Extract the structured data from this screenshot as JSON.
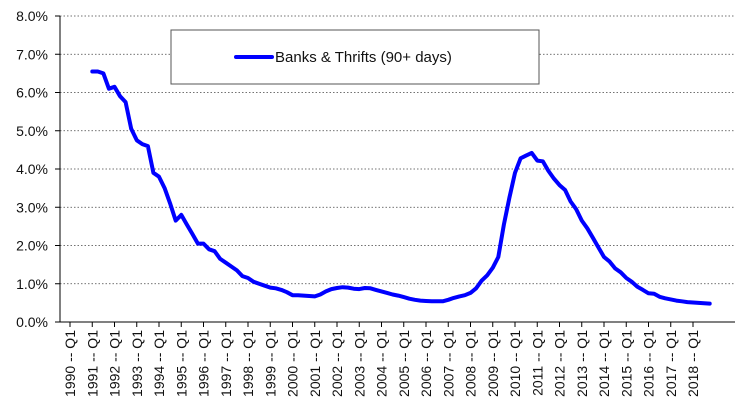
{
  "chart_data": {
    "type": "line",
    "title": "",
    "xlabel": "",
    "ylabel": "",
    "ylim": [
      0,
      8
    ],
    "yticks": [
      "0.0%",
      "1.0%",
      "2.0%",
      "3.0%",
      "4.0%",
      "5.0%",
      "6.0%",
      "7.0%",
      "8.0%"
    ],
    "x_tick_labels": [
      "1990 -- Q1",
      "1991 -- Q1",
      "1992 -- Q1",
      "1993 -- Q1",
      "1994 -- Q1",
      "1995 -- Q1",
      "1996 -- Q1",
      "1997 -- Q1",
      "1998 -- Q1",
      "1999 -- Q1",
      "2000 -- Q1",
      "2001 -- Q1",
      "2002 -- Q1",
      "2003 -- Q1",
      "2004 -- Q1",
      "2005 -- Q1",
      "2006 -- Q1",
      "2007 -- Q1",
      "2008 -- Q1",
      "2009 -- Q1",
      "2010 -- Q1",
      "2011 -- Q1",
      "2012 -- Q1",
      "2013 -- Q1",
      "2014 -- Q1",
      "2015 -- Q1",
      "2016 -- Q1",
      "2017 -- Q1",
      "2018 -- Q1"
    ],
    "grid": "horizontal dotted",
    "legend_position": "top-center",
    "series": [
      {
        "name": "Banks & Thrifts (90+ days)",
        "color": "#0000ff",
        "x": [
          "1991 Q1",
          "1991 Q2",
          "1991 Q3",
          "1991 Q4",
          "1992 Q1",
          "1992 Q2",
          "1992 Q3",
          "1992 Q4",
          "1993 Q1",
          "1993 Q2",
          "1993 Q3",
          "1993 Q4",
          "1994 Q1",
          "1994 Q2",
          "1994 Q3",
          "1994 Q4",
          "1995 Q1",
          "1995 Q2",
          "1995 Q3",
          "1995 Q4",
          "1996 Q1",
          "1996 Q2",
          "1996 Q3",
          "1996 Q4",
          "1997 Q1",
          "1997 Q2",
          "1997 Q3",
          "1997 Q4",
          "1998 Q1",
          "1998 Q2",
          "1998 Q3",
          "1998 Q4",
          "1999 Q1",
          "1999 Q2",
          "1999 Q3",
          "1999 Q4",
          "2000 Q1",
          "2000 Q2",
          "2000 Q3",
          "2000 Q4",
          "2001 Q1",
          "2001 Q2",
          "2001 Q3",
          "2001 Q4",
          "2002 Q1",
          "2002 Q2",
          "2002 Q3",
          "2002 Q4",
          "2003 Q1",
          "2003 Q2",
          "2003 Q3",
          "2003 Q4",
          "2004 Q1",
          "2004 Q2",
          "2004 Q3",
          "2004 Q4",
          "2005 Q1",
          "2005 Q2",
          "2005 Q3",
          "2005 Q4",
          "2006 Q1",
          "2006 Q2",
          "2006 Q3",
          "2006 Q4",
          "2007 Q1",
          "2007 Q2",
          "2007 Q3",
          "2007 Q4",
          "2008 Q1",
          "2008 Q2",
          "2008 Q3",
          "2008 Q4",
          "2009 Q1",
          "2009 Q2",
          "2009 Q3",
          "2009 Q4",
          "2010 Q1",
          "2010 Q2",
          "2010 Q3",
          "2010 Q4",
          "2011 Q1",
          "2011 Q2",
          "2011 Q3",
          "2011 Q4",
          "2012 Q1",
          "2012 Q2",
          "2012 Q3",
          "2012 Q4",
          "2013 Q1",
          "2013 Q2",
          "2013 Q3",
          "2013 Q4",
          "2014 Q1",
          "2014 Q2",
          "2014 Q3",
          "2014 Q4",
          "2015 Q1",
          "2015 Q2",
          "2015 Q3",
          "2015 Q4",
          "2016 Q1",
          "2016 Q2",
          "2016 Q3",
          "2016 Q4",
          "2017 Q1",
          "2017 Q2",
          "2017 Q3",
          "2017 Q4",
          "2018 Q1",
          "2018 Q2",
          "2018 Q3",
          "2018 Q4"
        ],
        "values": [
          6.55,
          6.55,
          6.5,
          6.1,
          6.15,
          5.9,
          5.75,
          5.05,
          4.75,
          4.65,
          4.6,
          3.9,
          3.8,
          3.5,
          3.1,
          2.65,
          2.8,
          2.55,
          2.3,
          2.05,
          2.05,
          1.9,
          1.85,
          1.65,
          1.55,
          1.45,
          1.35,
          1.2,
          1.15,
          1.05,
          1.0,
          0.95,
          0.9,
          0.88,
          0.84,
          0.78,
          0.7,
          0.7,
          0.69,
          0.68,
          0.67,
          0.72,
          0.8,
          0.86,
          0.89,
          0.91,
          0.9,
          0.87,
          0.86,
          0.89,
          0.88,
          0.84,
          0.8,
          0.76,
          0.72,
          0.69,
          0.65,
          0.61,
          0.58,
          0.56,
          0.55,
          0.54,
          0.54,
          0.54,
          0.58,
          0.63,
          0.67,
          0.7,
          0.76,
          0.88,
          1.08,
          1.22,
          1.42,
          1.7,
          2.55,
          3.25,
          3.9,
          4.28,
          4.35,
          4.42,
          4.22,
          4.2,
          3.95,
          3.75,
          3.58,
          3.45,
          3.15,
          2.95,
          2.65,
          2.45,
          2.2,
          1.95,
          1.7,
          1.58,
          1.4,
          1.3,
          1.15,
          1.05,
          0.92,
          0.84,
          0.75,
          0.74,
          0.66,
          0.62,
          0.59,
          0.56,
          0.54,
          0.52,
          0.51,
          0.5,
          0.49,
          0.48
        ]
      }
    ]
  }
}
